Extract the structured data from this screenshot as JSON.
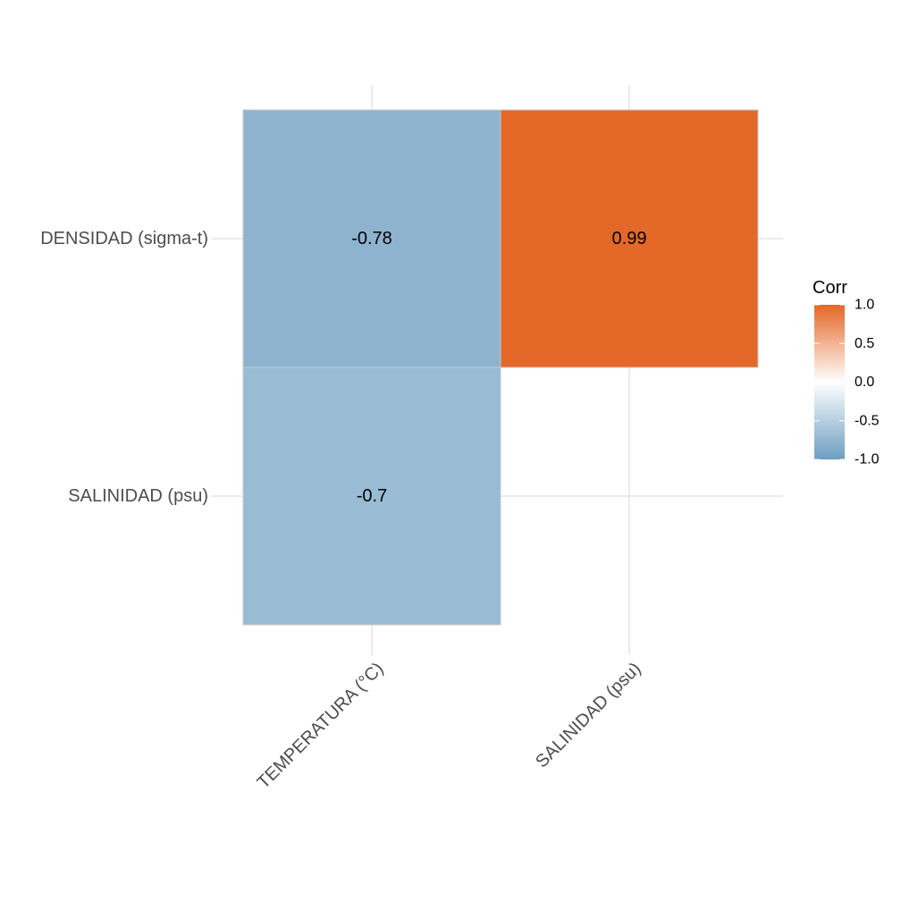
{
  "chart_data": {
    "type": "heatmap",
    "x_categories": [
      "TEMPERATURA (°C)",
      "SALINIDAD (psu)"
    ],
    "y_categories": [
      "DENSIDAD (sigma-t)",
      "SALINIDAD (psu)"
    ],
    "cells": [
      {
        "x": "TEMPERATURA (°C)",
        "y": "DENSIDAD (sigma-t)",
        "value": -0.78,
        "label": "-0.78"
      },
      {
        "x": "SALINIDAD (psu)",
        "y": "DENSIDAD (sigma-t)",
        "value": 0.99,
        "label": "0.99"
      },
      {
        "x": "TEMPERATURA (°C)",
        "y": "SALINIDAD (psu)",
        "value": -0.7,
        "label": "-0.7"
      }
    ],
    "legend": {
      "title": "Corr",
      "ticks": [
        {
          "value": 1.0,
          "label": "1.0"
        },
        {
          "value": 0.5,
          "label": "0.5"
        },
        {
          "value": 0.0,
          "label": "0.0"
        },
        {
          "value": -0.5,
          "label": "-0.5"
        },
        {
          "value": -1.0,
          "label": "-1.0"
        }
      ],
      "limits": [
        -1,
        1
      ],
      "placement": "right"
    },
    "colors": {
      "low": "#6d9ec1",
      "mid": "#ffffff",
      "high": "#e46726"
    },
    "grid": true
  }
}
